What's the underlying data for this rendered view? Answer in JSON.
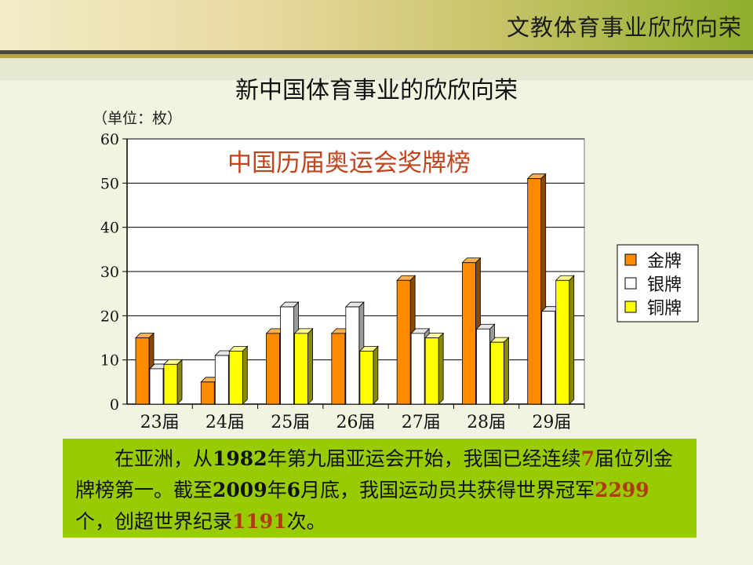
{
  "header": {
    "title": "文教体育事业欣欣向荣"
  },
  "slide": {
    "title": "新中国体育事业的欣欣向荣",
    "unit": "（单位：枚）"
  },
  "chart_data": {
    "type": "bar",
    "title": "中国历届奥运会奖牌榜",
    "categories": [
      "23届",
      "24届",
      "25届",
      "26届",
      "27届",
      "28届",
      "29届"
    ],
    "series": [
      {
        "name": "金牌",
        "values": [
          15,
          5,
          16,
          16,
          28,
          32,
          51
        ],
        "color": "#ff8c00"
      },
      {
        "name": "银牌",
        "values": [
          8,
          11,
          22,
          22,
          16,
          17,
          21
        ],
        "color": "#ffffff"
      },
      {
        "name": "铜牌",
        "values": [
          9,
          12,
          16,
          12,
          15,
          14,
          28
        ],
        "color": "#ffff00"
      }
    ],
    "ylim": [
      0,
      60
    ],
    "yticks": [
      0,
      10,
      20,
      30,
      40,
      50,
      60
    ],
    "grid": true,
    "legend": "right",
    "title_color": "#c0451e"
  },
  "textbox": {
    "p1": "在亚洲，从",
    "n1": "1982",
    "p2": "年第九届亚运会开始，我国已经连续",
    "n2": "7",
    "p3": "届位列金牌榜第一。截至",
    "n3": "2009",
    "p4": "年",
    "n4": "6",
    "p5": "月底，我国运动员共获得世界冠军",
    "n5": "2299",
    "p6": "个，创超世界纪录",
    "n6": "1191",
    "p7": "次。"
  }
}
